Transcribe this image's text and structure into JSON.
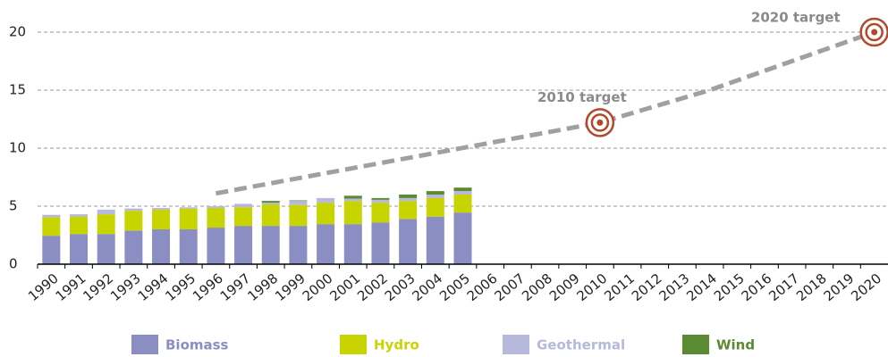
{
  "chart_data": {
    "type": "bar",
    "stacked": true,
    "categories": [
      "1990",
      "1991",
      "1992",
      "1993",
      "1994",
      "1995",
      "1996",
      "1997",
      "1998",
      "1999",
      "2000",
      "2001",
      "2002",
      "2003",
      "2004",
      "2005",
      "2006",
      "2007",
      "2008",
      "2009",
      "2010",
      "2011",
      "2012",
      "2013",
      "2014",
      "2015",
      "2016",
      "2017",
      "2018",
      "2019",
      "2020"
    ],
    "series": [
      {
        "name": "Biomass",
        "color": "#8a8ec3",
        "values": [
          2.45,
          2.6,
          2.6,
          2.9,
          3.0,
          3.0,
          3.15,
          3.3,
          3.3,
          3.3,
          3.45,
          3.45,
          3.6,
          3.9,
          4.1,
          4.45,
          null,
          null,
          null,
          null,
          null,
          null,
          null,
          null,
          null,
          null,
          null,
          null,
          null,
          null,
          null
        ]
      },
      {
        "name": "Hydro",
        "color": "#c8d400",
        "values": [
          1.6,
          1.5,
          1.7,
          1.7,
          1.7,
          1.8,
          1.7,
          1.6,
          1.85,
          1.8,
          1.85,
          2.0,
          1.7,
          1.55,
          1.6,
          1.55,
          null,
          null,
          null,
          null,
          null,
          null,
          null,
          null,
          null,
          null,
          null,
          null,
          null,
          null,
          null
        ]
      },
      {
        "name": "Geothermal",
        "color": "#b6b8dc",
        "values": [
          0.2,
          0.2,
          0.4,
          0.2,
          0.15,
          0.1,
          0.15,
          0.3,
          0.15,
          0.35,
          0.4,
          0.2,
          0.25,
          0.25,
          0.3,
          0.3,
          null,
          null,
          null,
          null,
          null,
          null,
          null,
          null,
          null,
          null,
          null,
          null,
          null,
          null,
          null
        ]
      },
      {
        "name": "Wind",
        "color": "#5a8a32",
        "values": [
          0,
          0,
          0,
          0,
          0,
          0,
          0,
          0,
          0.15,
          0.05,
          0,
          0.25,
          0.15,
          0.3,
          0.3,
          0.3,
          null,
          null,
          null,
          null,
          null,
          null,
          null,
          null,
          null,
          null,
          null,
          null,
          null,
          null,
          null
        ]
      }
    ],
    "trend": {
      "x": [
        "1996",
        "2010",
        "2014",
        "2020"
      ],
      "values": [
        6.1,
        12.2,
        15,
        20
      ],
      "color": "#a0a0a0"
    },
    "annotations": [
      {
        "text": "2010 target",
        "x": "2010",
        "value": 12.2
      },
      {
        "text": "2020 target",
        "x": "2020",
        "value": 20
      }
    ],
    "target_color": "#b5462a",
    "ylim": [
      0,
      21
    ],
    "yticks": [
      0,
      5,
      10,
      15,
      20
    ],
    "grid": true
  }
}
